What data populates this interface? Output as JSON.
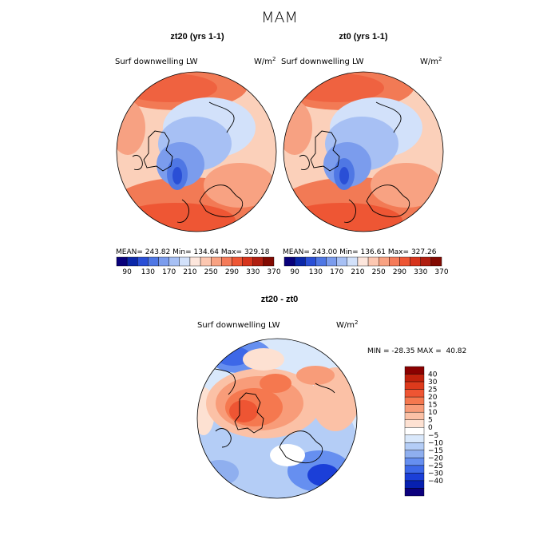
{
  "page_title": "MAM",
  "units_superscript": "2",
  "chart_data": [
    {
      "type": "heatmap",
      "title": "zt20 (yrs 1-1)",
      "variable": "Surf downwelling LW",
      "units": "W/m",
      "projection": "north polar stereographic",
      "stats": {
        "mean_label": "MEAN=",
        "mean": "243.82",
        "min_label": "Min=",
        "min": "134.64",
        "max_label": "Max=",
        "max": "329.18"
      }
    },
    {
      "type": "heatmap",
      "title": "zt0 (yrs 1-1)",
      "variable": "Surf downwelling LW",
      "units": "W/m",
      "projection": "north polar stereographic",
      "stats": {
        "mean_label": "MEAN=",
        "mean": "243.00",
        "min_label": "Min=",
        "min": "136.61",
        "max_label": "Max=",
        "max": "327.26"
      }
    },
    {
      "type": "heatmap",
      "title": "zt20 - zt0",
      "variable": "Surf downwelling LW",
      "units": "W/m",
      "projection": "north polar stereographic",
      "stats_line": "MIN = -28.35 MAX =  40.82",
      "stats": {
        "min": -28.35,
        "max": 40.82
      }
    }
  ],
  "colorbars": {
    "absolute": {
      "colors": [
        "#08007a",
        "#0b27a8",
        "#2a4fd6",
        "#4f77e4",
        "#7b9ced",
        "#a7c0f4",
        "#d2e1fa",
        "#fde6dc",
        "#fcc7b1",
        "#f8a282",
        "#f57b59",
        "#ee5634",
        "#d6341c",
        "#b01e10",
        "#820a02"
      ],
      "labels": [
        "90",
        "130",
        "170",
        "210",
        "250",
        "290",
        "330",
        "370"
      ]
    },
    "difference": {
      "colors": [
        "#0c007d",
        "#0720b0",
        "#1b3fd8",
        "#3d68e8",
        "#668ff0",
        "#8fafef",
        "#b4cdf6",
        "#d9e8fb",
        "#ffffff",
        "#fde1d2",
        "#fbc1a6",
        "#f89c79",
        "#f5784f",
        "#ee5533",
        "#dd3a1c",
        "#c0210c",
        "#8a0000"
      ],
      "labels": [
        "40",
        "30",
        "25",
        "20",
        "15",
        "10",
        "5",
        "0",
        "−5",
        "−10",
        "−15",
        "−20",
        "−25",
        "−30",
        "−40"
      ]
    }
  }
}
